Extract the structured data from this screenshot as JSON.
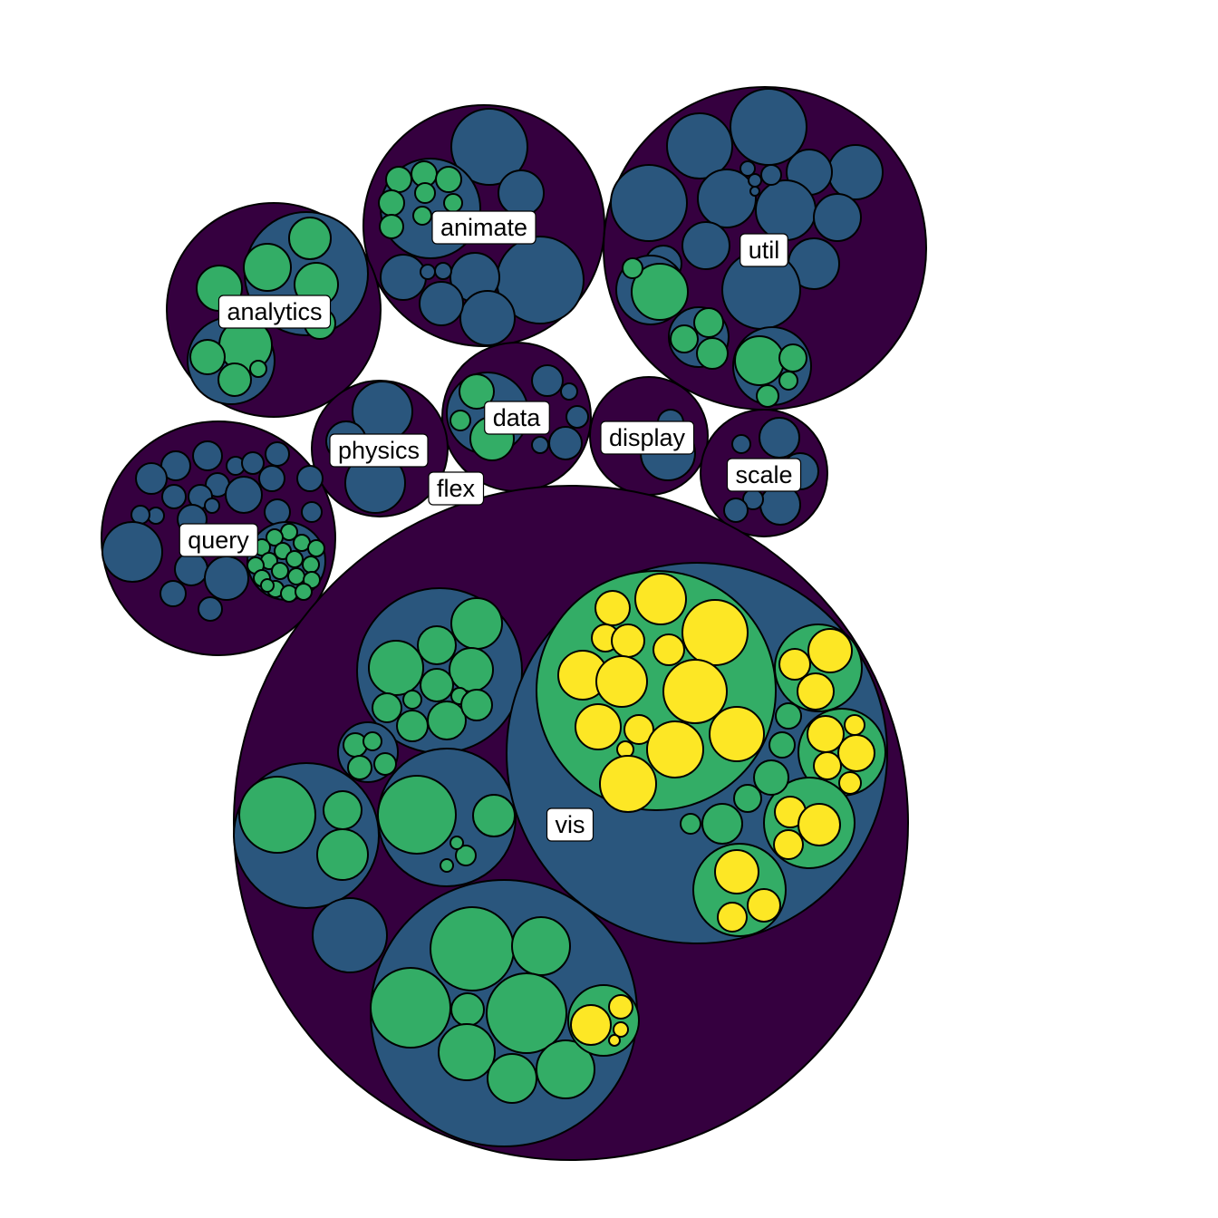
{
  "diagram": {
    "type": "circle-packing",
    "depth_colors": {
      "1": "#35003f",
      "2": "#2a567d",
      "3": "#33ad66",
      "4": "#fde725"
    },
    "labels": [
      "animate",
      "util",
      "analytics",
      "data",
      "physics",
      "display",
      "scale",
      "flex",
      "query",
      "vis"
    ]
  }
}
